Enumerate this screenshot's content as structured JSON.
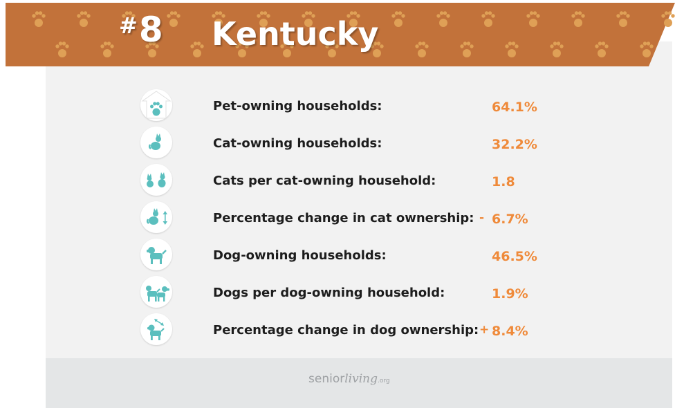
{
  "header": {
    "rank_symbol": "#",
    "rank_number": "8",
    "state": "Kentucky"
  },
  "colors": {
    "banner": "#c2723a",
    "paw": "#dfa056",
    "accent": "#ef8a3a",
    "icon": "#5bbfbe"
  },
  "stats": [
    {
      "icon": "house-paw-icon",
      "label": "Pet-owning households:",
      "prefix": "",
      "value": "64.1%"
    },
    {
      "icon": "cat-icon",
      "label": "Cat-owning households:",
      "prefix": "",
      "value": "32.2%"
    },
    {
      "icon": "two-cats-icon",
      "label": "Cats per cat-owning household:",
      "prefix": "",
      "value": "1.8"
    },
    {
      "icon": "cat-change-icon",
      "label": "Percentage change in cat ownership:",
      "prefix": "-",
      "value": "6.7%"
    },
    {
      "icon": "dog-icon",
      "label": "Dog-owning households:",
      "prefix": "",
      "value": "46.5%"
    },
    {
      "icon": "two-dogs-icon",
      "label": "Dogs per dog-owning household:",
      "prefix": "",
      "value": "1.9%"
    },
    {
      "icon": "dog-change-icon",
      "label": "Percentage change in dog ownership:",
      "prefix": "+",
      "value": "8.4%"
    }
  ],
  "footer": {
    "brand_a": "senior",
    "brand_b": "living",
    "brand_c": ".org"
  }
}
